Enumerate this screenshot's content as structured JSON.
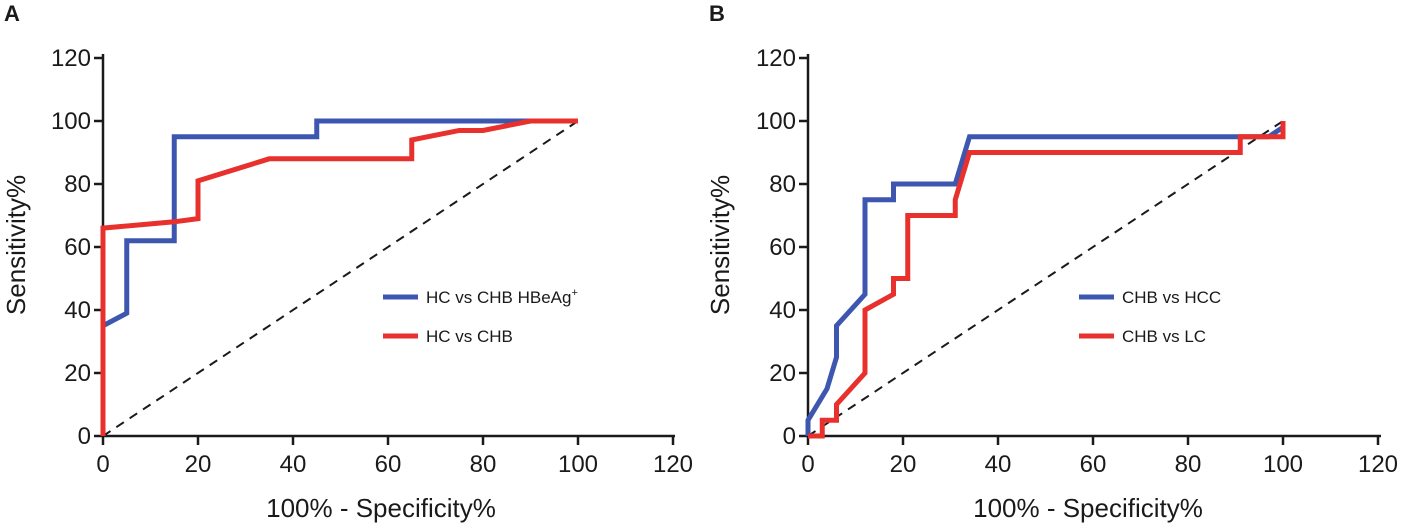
{
  "chart_data": [
    {
      "type": "line",
      "panel_label": "A",
      "xlabel": "100% - Specificity%",
      "ylabel": "Sensitivity%",
      "xlim": [
        0,
        120
      ],
      "ylim": [
        0,
        120
      ],
      "xticks": [
        0,
        20,
        40,
        60,
        80,
        100,
        120
      ],
      "yticks": [
        0,
        20,
        40,
        60,
        80,
        100,
        120
      ],
      "legend_position": "center-right",
      "reference_line": {
        "x": [
          0,
          100
        ],
        "y": [
          0,
          100
        ],
        "style": "dashed"
      },
      "series": [
        {
          "name": "HC vs CHB HBeAg",
          "name_sup": "+",
          "color": "#3d56b0",
          "x": [
            0,
            0,
            5,
            5,
            15,
            15,
            45,
            45,
            100
          ],
          "y": [
            34,
            35,
            39,
            62,
            62,
            95,
            95,
            100,
            100
          ]
        },
        {
          "name": "HC vs CHB",
          "name_sup": "",
          "color": "#e8302d",
          "x": [
            0,
            0,
            0,
            15,
            20,
            20,
            35,
            65,
            65,
            75,
            80,
            90,
            100
          ],
          "y": [
            0,
            20,
            66,
            68,
            69,
            81,
            88,
            88,
            94,
            97,
            97,
            100,
            100
          ]
        }
      ]
    },
    {
      "type": "line",
      "panel_label": "B",
      "xlabel": "100% - Specificity%",
      "ylabel": "Sensitivity%",
      "xlim": [
        0,
        120
      ],
      "ylim": [
        0,
        120
      ],
      "xticks": [
        0,
        20,
        40,
        60,
        80,
        100,
        120
      ],
      "yticks": [
        0,
        20,
        40,
        60,
        80,
        100,
        120
      ],
      "legend_position": "center-right",
      "reference_line": {
        "x": [
          0,
          100
        ],
        "y": [
          0,
          100
        ],
        "style": "dashed"
      },
      "series": [
        {
          "name": "CHB vs HCC",
          "name_sup": "",
          "color": "#3d56b0",
          "x": [
            0,
            0,
            2,
            4,
            6,
            6,
            9,
            12,
            12,
            18,
            18,
            31,
            34,
            34,
            97,
            100,
            100
          ],
          "y": [
            0,
            5,
            10,
            15,
            25,
            35,
            40,
            45,
            75,
            75,
            80,
            80,
            95,
            95,
            95,
            98,
            100
          ]
        },
        {
          "name": "CHB vs LC",
          "name_sup": "",
          "color": "#e8302d",
          "x": [
            0,
            3,
            3,
            6,
            6,
            9,
            12,
            12,
            18,
            18,
            21,
            21,
            31,
            31,
            34,
            34,
            91,
            91,
            100,
            100
          ],
          "y": [
            0,
            0,
            5,
            5,
            10,
            15,
            20,
            40,
            45,
            50,
            50,
            70,
            70,
            75,
            90,
            90,
            90,
            95,
            95,
            100
          ]
        }
      ]
    }
  ]
}
